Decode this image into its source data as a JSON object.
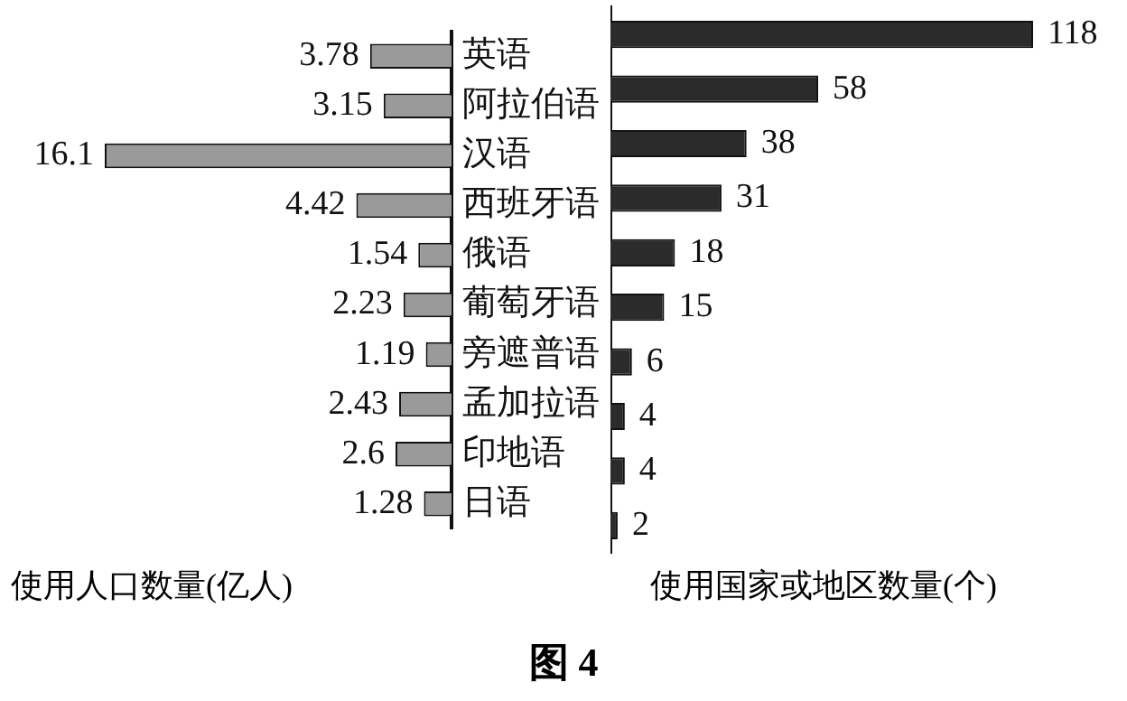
{
  "chart_data": [
    {
      "type": "bar",
      "orientation": "horizontal",
      "categories": [
        "英语",
        "阿拉伯语",
        "汉语",
        "西班牙语",
        "俄语",
        "葡萄牙语",
        "旁遮普语",
        "孟加拉语",
        "印地语",
        "日语"
      ],
      "values": [
        3.78,
        3.15,
        16.1,
        4.42,
        1.54,
        2.23,
        1.19,
        2.43,
        2.6,
        1.28
      ],
      "color": "#9a9a9a",
      "data_labels": true,
      "tick_labels": "y",
      "xlabel": "使用人口数量(亿人)",
      "legend": false,
      "annotations": [
        "图 4"
      ]
    },
    {
      "type": "bar",
      "orientation": "horizontal",
      "categories": [
        null,
        null,
        null,
        null,
        null,
        null,
        null,
        null,
        null,
        null
      ],
      "values": [
        118,
        58,
        38,
        31,
        18,
        15,
        6,
        4,
        4,
        2
      ],
      "color": "#2b2b2b",
      "data_labels": true,
      "tick_labels": false,
      "xlabel": "使用国家或地区数量(个)",
      "legend": false
    }
  ]
}
